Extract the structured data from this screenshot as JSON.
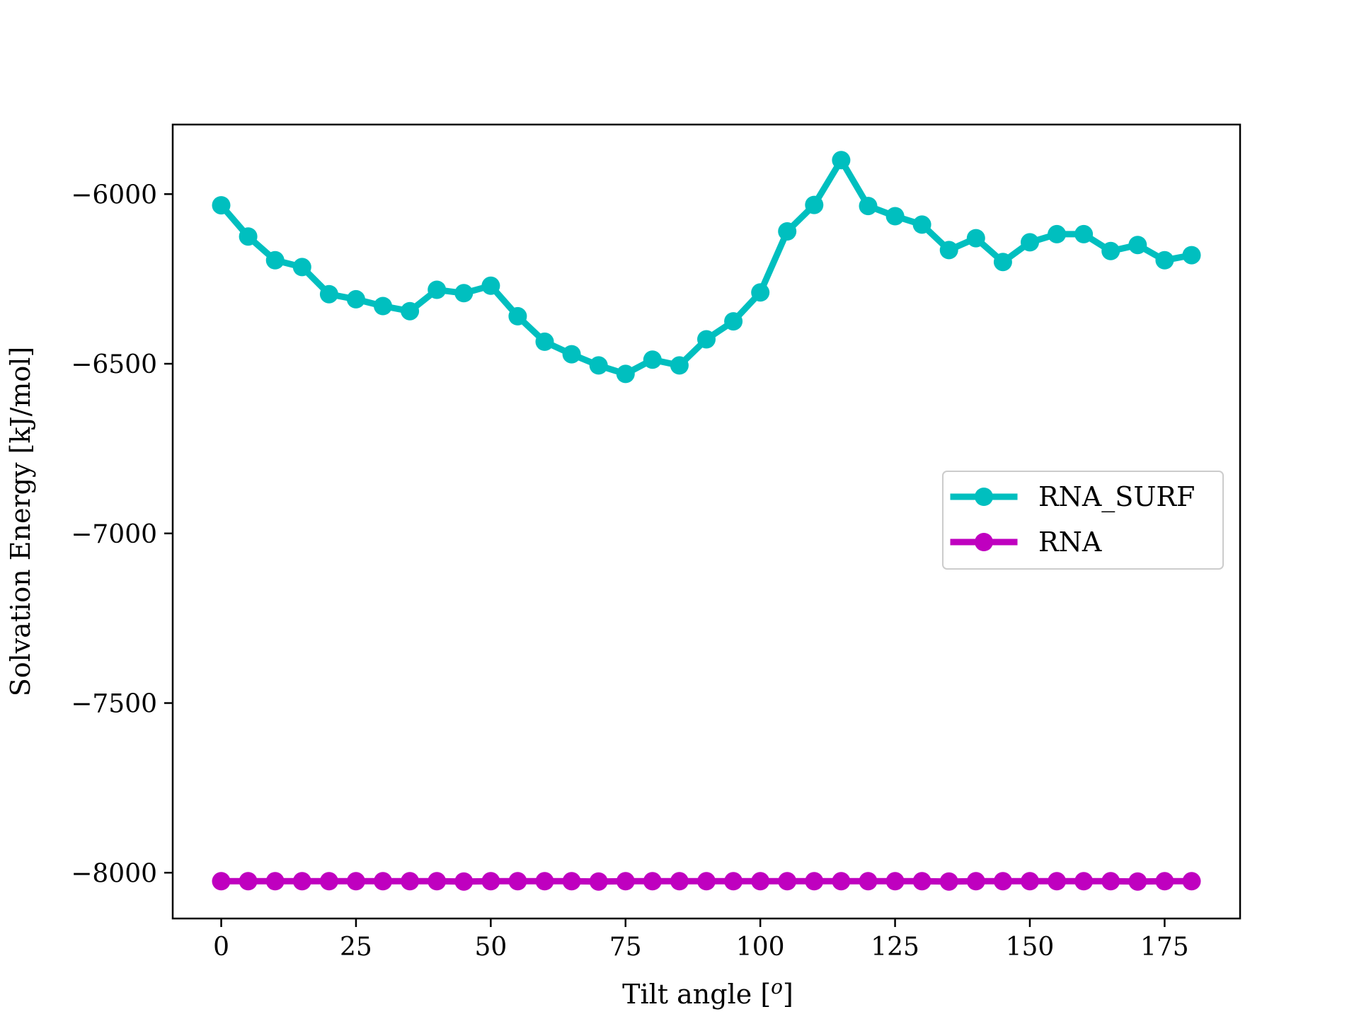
{
  "chart_data": {
    "type": "line",
    "title": "",
    "xlabel": "Tilt angle [",
    "xlabel_sup": "o",
    "xlabel_end": "]",
    "ylabel": "Solvation Energy [kJ/mol]",
    "xlim": [
      -9,
      189
    ],
    "ylim": [
      -8135,
      -5795
    ],
    "xticks": [
      0,
      25,
      50,
      75,
      100,
      125,
      150,
      175
    ],
    "yticks": [
      -6000,
      -6500,
      -7000,
      -7500,
      -8000
    ],
    "xtick_labels": [
      "0",
      "25",
      "50",
      "75",
      "100",
      "125",
      "150",
      "175"
    ],
    "ytick_labels": [
      "−6000",
      "−6500",
      "−7000",
      "−7500",
      "−8000"
    ],
    "grid": false,
    "legend_position": "center-right",
    "x": [
      0,
      5,
      10,
      15,
      20,
      25,
      30,
      35,
      40,
      45,
      50,
      55,
      60,
      65,
      70,
      75,
      80,
      85,
      90,
      95,
      100,
      105,
      110,
      115,
      120,
      125,
      130,
      135,
      140,
      145,
      150,
      155,
      160,
      165,
      170,
      175,
      180
    ],
    "series": [
      {
        "name": "RNA_SURF",
        "color": "#00bfbf",
        "values": [
          -6033,
          -6125,
          -6195,
          -6215,
          -6295,
          -6310,
          -6330,
          -6345,
          -6282,
          -6292,
          -6270,
          -6360,
          -6435,
          -6472,
          -6505,
          -6530,
          -6488,
          -6505,
          -6428,
          -6375,
          -6290,
          -6110,
          -6032,
          -5900,
          -6035,
          -6065,
          -6090,
          -6165,
          -6130,
          -6200,
          -6142,
          -6118,
          -6118,
          -6168,
          -6150,
          -6195,
          -6180
        ]
      },
      {
        "name": "RNA",
        "color": "#bf00bf",
        "values": [
          -8025,
          -8025,
          -8025,
          -8025,
          -8025,
          -8025,
          -8025,
          -8025,
          -8025,
          -8026,
          -8025,
          -8025,
          -8025,
          -8025,
          -8026,
          -8025,
          -8025,
          -8025,
          -8025,
          -8025,
          -8025,
          -8025,
          -8025,
          -8025,
          -8025,
          -8025,
          -8025,
          -8026,
          -8025,
          -8025,
          -8025,
          -8025,
          -8025,
          -8025,
          -8026,
          -8025,
          -8025
        ]
      }
    ]
  }
}
